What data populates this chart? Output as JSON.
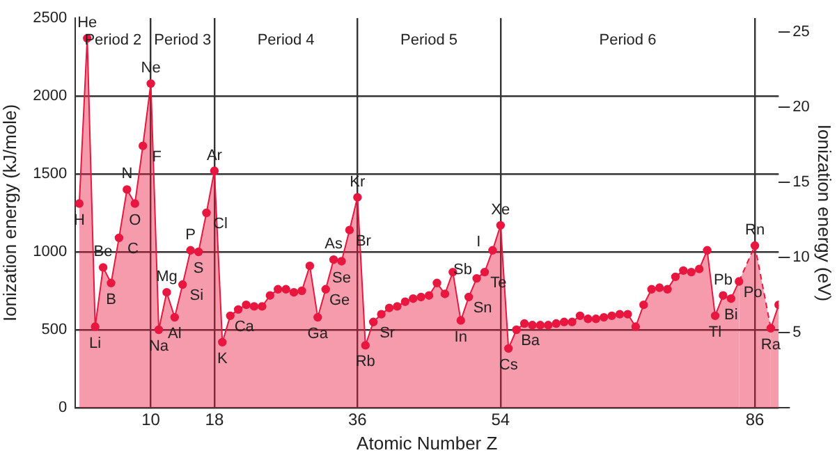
{
  "chart_data": {
    "type": "area",
    "xlabel": "Atomic Number Z",
    "ylabel": "Ionization energy (kJ/mole)",
    "y2label": "Ionization energy (eV)",
    "x": [
      1,
      2,
      3,
      4,
      5,
      6,
      7,
      8,
      9,
      10,
      11,
      12,
      13,
      14,
      15,
      16,
      17,
      18,
      19,
      20,
      21,
      22,
      23,
      24,
      25,
      26,
      27,
      28,
      29,
      30,
      31,
      32,
      33,
      34,
      35,
      36,
      37,
      38,
      39,
      40,
      41,
      42,
      43,
      44,
      45,
      46,
      47,
      48,
      49,
      50,
      51,
      52,
      53,
      54,
      55,
      56,
      57,
      58,
      59,
      60,
      61,
      62,
      63,
      64,
      65,
      66,
      67,
      68,
      69,
      70,
      71,
      72,
      73,
      74,
      75,
      76,
      77,
      78,
      79,
      80,
      81,
      82,
      83,
      84,
      85,
      86,
      87,
      88,
      89
    ],
    "series": [
      {
        "color": "#e8173f",
        "values": [
          1310,
          2370,
          520,
          900,
          800,
          1090,
          1400,
          1310,
          1680,
          2080,
          500,
          740,
          580,
          790,
          1010,
          1000,
          1250,
          1520,
          420,
          590,
          630,
          660,
          650,
          650,
          720,
          760,
          760,
          740,
          750,
          910,
          580,
          760,
          950,
          940,
          1140,
          1350,
          400,
          550,
          600,
          640,
          650,
          680,
          700,
          710,
          720,
          800,
          730,
          870,
          560,
          710,
          830,
          870,
          1010,
          1170,
          380,
          500,
          540,
          530,
          530,
          530,
          540,
          550,
          550,
          590,
          570,
          570,
          580,
          590,
          600,
          600,
          520,
          660,
          760,
          770,
          760,
          840,
          880,
          870,
          890,
          1010,
          590,
          720,
          700,
          810,
          null,
          1040,
          null,
          510,
          660
        ]
      }
    ],
    "xlim": [
      0.5,
      89
    ],
    "xticks": [
      10,
      18,
      36,
      54,
      86
    ],
    "ylim": [
      0,
      2500
    ],
    "yticks": [
      0,
      500,
      1000,
      1500,
      2000,
      2500
    ],
    "y2lim": [
      0,
      25.91
    ],
    "y2ticks": [
      {
        "value": 0,
        "label": null
      },
      5,
      10,
      15,
      20,
      25
    ],
    "grid": true,
    "marker": "circle",
    "line_style": "solid",
    "legend": false,
    "annotations": [
      "Period 2",
      "Period 3",
      "Period 4",
      "Period 5",
      "Period 6",
      {
        "text": "H",
        "x": 1,
        "y": 1310
      },
      {
        "text": "He",
        "x": 2,
        "y": 2370
      },
      {
        "text": "Li",
        "x": 3,
        "y": 520
      },
      {
        "text": "Be",
        "x": 4,
        "y": 900
      },
      {
        "text": "B",
        "x": 5,
        "y": 800
      },
      {
        "text": "C",
        "x": 6,
        "y": 1090
      },
      {
        "text": "N",
        "x": 7,
        "y": 1400
      },
      {
        "text": "O",
        "x": 8,
        "y": 1310
      },
      {
        "text": "F",
        "x": 9,
        "y": 1680
      },
      {
        "text": "Ne",
        "x": 10,
        "y": 2080
      },
      {
        "text": "Na",
        "x": 11,
        "y": 500
      },
      {
        "text": "Mg",
        "x": 12,
        "y": 740
      },
      {
        "text": "Al",
        "x": 13,
        "y": 580
      },
      {
        "text": "Si",
        "x": 14,
        "y": 790
      },
      {
        "text": "P",
        "x": 15,
        "y": 1010
      },
      {
        "text": "S",
        "x": 16,
        "y": 1000
      },
      {
        "text": "Cl",
        "x": 17,
        "y": 1250
      },
      {
        "text": "Ar",
        "x": 18,
        "y": 1520
      },
      {
        "text": "K",
        "x": 19,
        "y": 420
      },
      {
        "text": "Ca",
        "x": 20,
        "y": 590
      },
      {
        "text": "Ga",
        "x": 31,
        "y": 580
      },
      {
        "text": "Ge",
        "x": 32,
        "y": 760
      },
      {
        "text": "As",
        "x": 33,
        "y": 950
      },
      {
        "text": "Se",
        "x": 34,
        "y": 940
      },
      {
        "text": "Br",
        "x": 35,
        "y": 1140
      },
      {
        "text": "Kr",
        "x": 36,
        "y": 1350
      },
      {
        "text": "Rb",
        "x": 37,
        "y": 400
      },
      {
        "text": "Sr",
        "x": 38,
        "y": 550
      },
      {
        "text": "In",
        "x": 49,
        "y": 560
      },
      {
        "text": "Sn",
        "x": 50,
        "y": 710
      },
      {
        "text": "Sb",
        "x": 51,
        "y": 830
      },
      {
        "text": "Te",
        "x": 52,
        "y": 870
      },
      {
        "text": "I",
        "x": 53,
        "y": 1010
      },
      {
        "text": "Xe",
        "x": 54,
        "y": 1170
      },
      {
        "text": "Cs",
        "x": 55,
        "y": 380
      },
      {
        "text": "Ba",
        "x": 56,
        "y": 500
      },
      {
        "text": "Tl",
        "x": 81,
        "y": 590
      },
      {
        "text": "Pb",
        "x": 82,
        "y": 720
      },
      {
        "text": "Bi",
        "x": 83,
        "y": 700
      },
      {
        "text": "Po",
        "x": 84,
        "y": 810
      },
      {
        "text": "Rn",
        "x": 86,
        "y": 1040
      },
      {
        "text": "Ra",
        "x": 88,
        "y": 510
      }
    ]
  }
}
